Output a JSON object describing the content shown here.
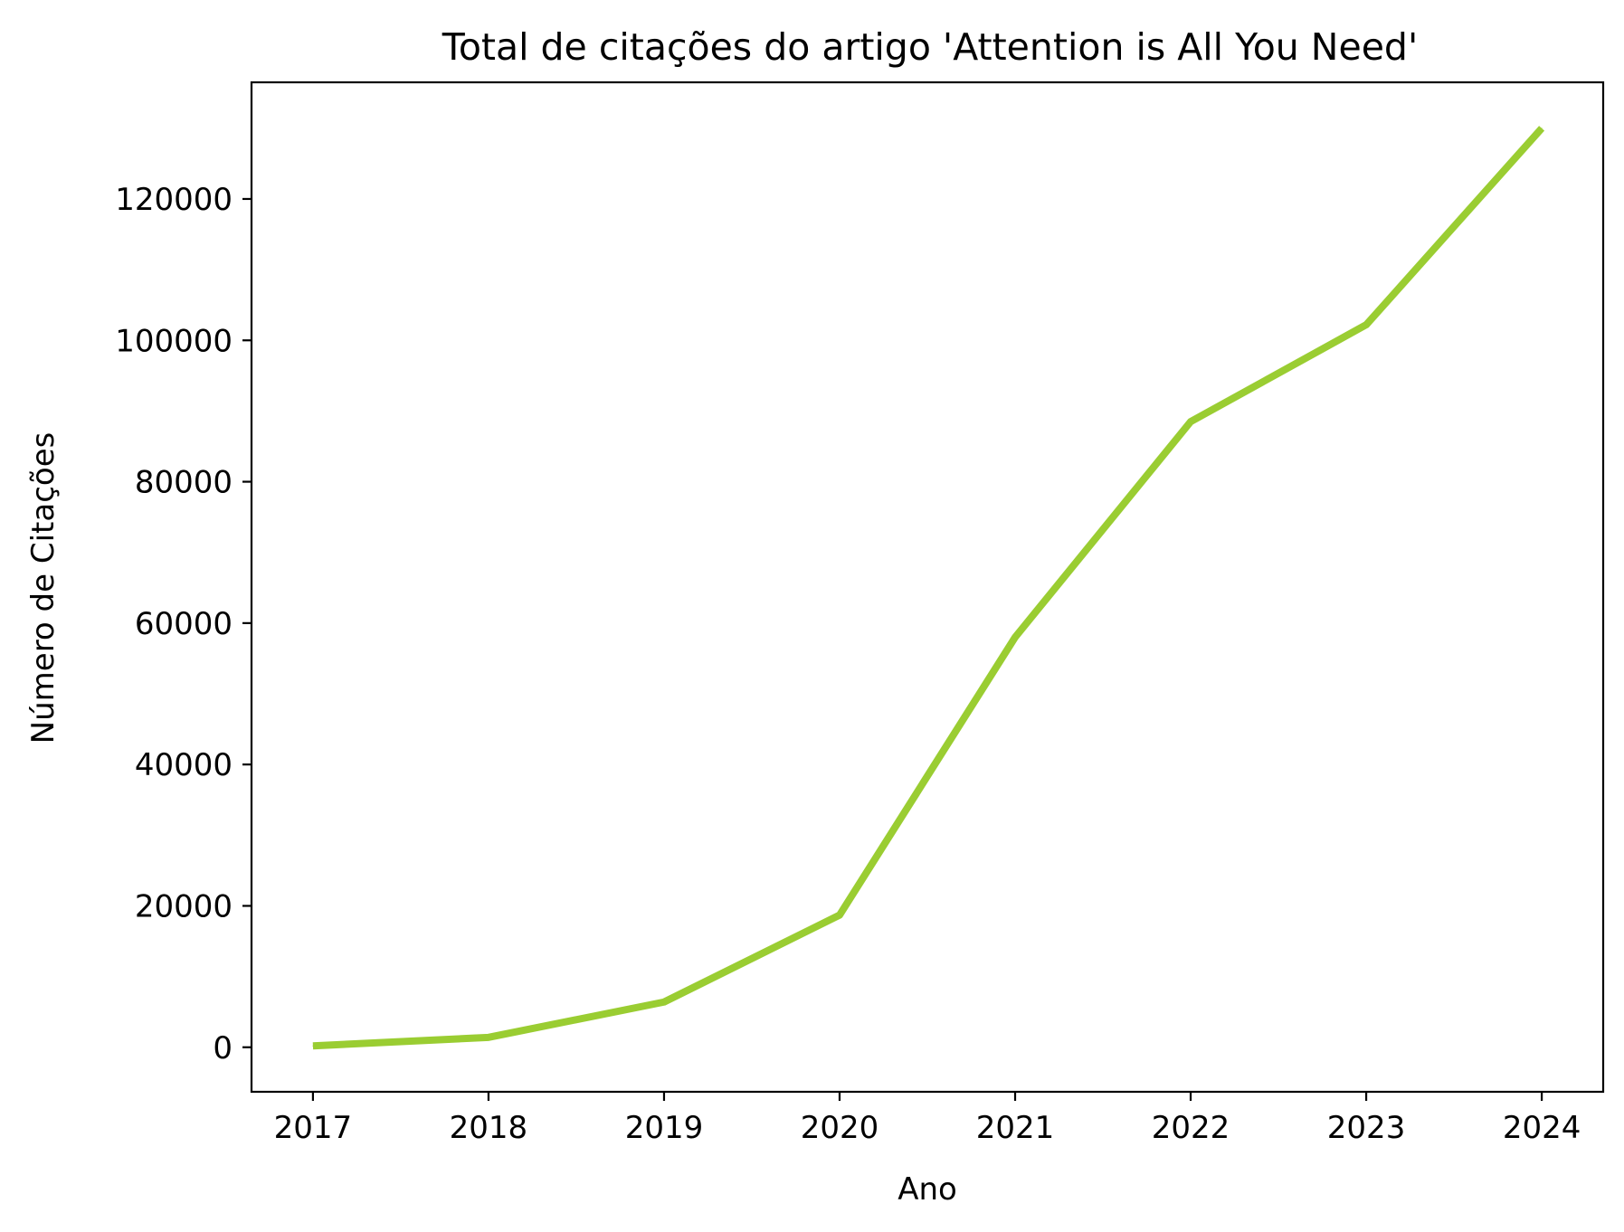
{
  "chart_data": {
    "type": "line",
    "title": "Total de citações do artigo 'Attention is All You Need'",
    "xlabel": "Ano",
    "ylabel": "Número de Citações",
    "x": [
      2017,
      2018,
      2019,
      2020,
      2021,
      2022,
      2023,
      2024
    ],
    "x_tick_labels": [
      "2017",
      "2018",
      "2019",
      "2020",
      "2021",
      "2022",
      "2023",
      "2024"
    ],
    "series": [
      {
        "values": [
          200,
          1400,
          6400,
          18700,
          58000,
          88500,
          102200,
          130000
        ],
        "color": "#9acd32"
      }
    ],
    "y_ticks": [
      0,
      20000,
      40000,
      60000,
      80000,
      100000,
      120000
    ],
    "y_tick_labels": [
      "0",
      "20000",
      "40000",
      "60000",
      "80000",
      "100000",
      "120000"
    ],
    "xlim": [
      2016.65,
      2024.35
    ],
    "ylim": [
      -6300,
      136500
    ],
    "grid": false,
    "legend": "none"
  }
}
